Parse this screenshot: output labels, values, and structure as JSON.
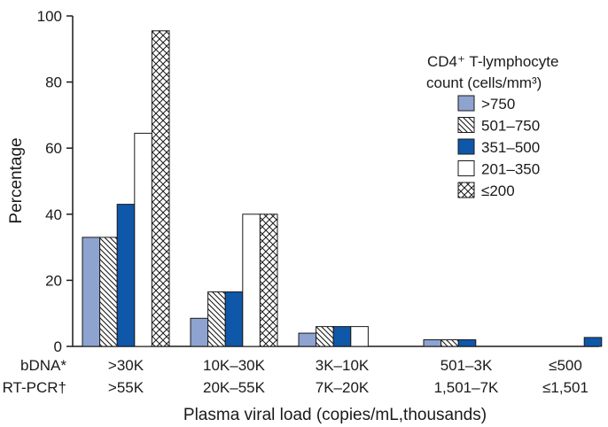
{
  "chart_data": {
    "type": "bar",
    "title": "",
    "xlabel": "Plasma viral load (copies/mL,thousands)",
    "ylabel": "Percentage",
    "ylim": [
      0,
      100
    ],
    "yticks": [
      0,
      20,
      40,
      60,
      80,
      100
    ],
    "grid": false,
    "legend": {
      "position": "top-right",
      "title_line1": "CD4⁺ T-lymphocyte",
      "title_line2": "count (cells/mm³)"
    },
    "category_rows": {
      "row1_label": "bDNA*",
      "row2_label": "RT-PCR†"
    },
    "categories": [
      {
        "bdna": ">30K",
        "rtpcr": ">55K"
      },
      {
        "bdna": "10K–30K",
        "rtpcr": "20K–55K"
      },
      {
        "bdna": "3K–10K",
        "rtpcr": "7K–20K"
      },
      {
        "bdna": "501–3K",
        "rtpcr": "1,501–7K"
      },
      {
        "bdna": "≤500",
        "rtpcr": "≤1,501"
      }
    ],
    "series": [
      {
        "name": ">750",
        "pattern": "solid-light",
        "color": "#8ea3d0",
        "values": [
          33,
          8.5,
          4,
          2,
          null
        ]
      },
      {
        "name": "501–750",
        "pattern": "diagonal-hatch",
        "color": "#ffffff",
        "values": [
          33,
          16.5,
          6,
          2,
          null
        ]
      },
      {
        "name": "351–500",
        "pattern": "solid-dark",
        "color": "#0f57a8",
        "values": [
          43,
          16.5,
          6,
          2,
          2.7
        ]
      },
      {
        "name": "201–350",
        "pattern": "open",
        "color": "#ffffff",
        "values": [
          64.5,
          40,
          6,
          null,
          null
        ]
      },
      {
        "name": "≤200",
        "pattern": "crosshatch",
        "color": "#ffffff",
        "values": [
          95.5,
          40,
          null,
          null,
          null
        ]
      }
    ]
  }
}
